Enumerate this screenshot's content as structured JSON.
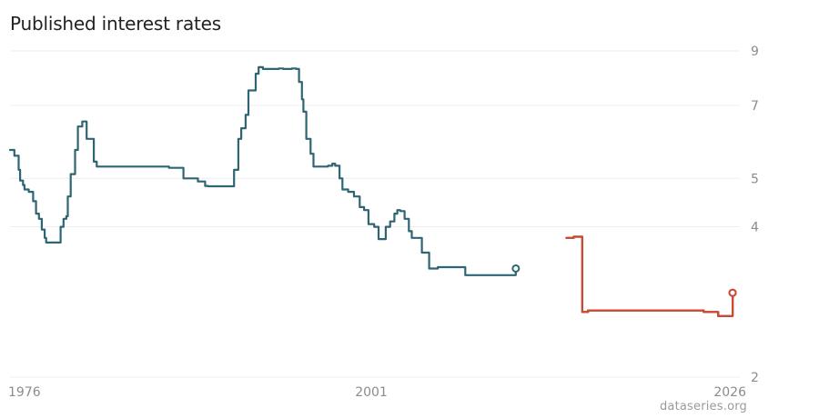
{
  "header": {
    "title": "Published interest rates"
  },
  "footer": {
    "source": "dataseries.org"
  },
  "chart_data": {
    "type": "line",
    "title": "Published interest rates",
    "xlabel": "",
    "ylabel": "",
    "xlim": [
      1976,
      2026.5
    ],
    "ylim": [
      2,
      9
    ],
    "y_scale": "log",
    "y_ticks": [
      2,
      4,
      5,
      7,
      9
    ],
    "y_tick_labels": [
      "2",
      "4",
      "5",
      "7",
      "9"
    ],
    "x_ticks": [
      1976,
      2001,
      2026
    ],
    "x_tick_labels": [
      "1976",
      "2001",
      "2026"
    ],
    "grid": "horizontal",
    "y_axis_side": "right",
    "series": [
      {
        "color": "#2d6672",
        "x": [
          1976.0,
          1976.3,
          1976.6,
          1976.7,
          1976.9,
          1977.0,
          1977.3,
          1977.6,
          1977.8,
          1978.0,
          1978.2,
          1978.4,
          1978.5,
          1978.8,
          1979.0,
          1979.5,
          1979.7,
          1979.9,
          1980.0,
          1980.2,
          1980.5,
          1980.7,
          1981.0,
          1981.3,
          1981.5,
          1981.8,
          1982.0,
          1982.2,
          1982.5,
          1982.8,
          1983.0,
          1983.2,
          1983.5,
          1983.7,
          1984.0,
          1984.3,
          1984.5,
          1985.0,
          1986.0,
          1987.0,
          1988.0,
          1989.0,
          1989.5,
          1989.7,
          1990.0,
          1991.0,
          1991.5,
          1991.8,
          1992.0,
          1992.3,
          1992.5,
          1993.0,
          1993.2,
          1993.5,
          1993.8,
          1994.0,
          1994.3,
          1994.6,
          1994.9,
          1995.2,
          1995.5,
          1995.8,
          1996.0,
          1996.2,
          1996.3,
          1996.5,
          1996.8,
          1997.0,
          1997.3,
          1997.6,
          1998.0,
          1998.3,
          1998.5,
          1998.8,
          1999.0,
          1999.4,
          1999.6,
          1999.8,
          2000.2,
          2000.5,
          2000.8,
          2001.2,
          2001.5,
          2001.8,
          2002.0,
          2002.3,
          2002.6,
          2002.8,
          2003.0,
          2003.3,
          2003.6,
          2003.8,
          2004.0,
          2004.5,
          2005.0,
          2005.6,
          2006.0,
          2006.5,
          2007.0,
          2007.5,
          2008.0,
          2008.5,
          2009.0,
          2009.3,
          2009.6,
          2010.0,
          2010.5,
          2011.0
        ],
        "y": [
          5.7,
          5.55,
          5.2,
          4.95,
          4.85,
          4.75,
          4.7,
          4.5,
          4.25,
          4.15,
          3.95,
          3.8,
          3.72,
          3.72,
          3.72,
          4.0,
          4.15,
          4.2,
          4.6,
          5.1,
          5.7,
          6.35,
          6.5,
          6.0,
          6.0,
          5.4,
          5.28,
          5.28,
          5.28,
          5.28,
          5.28,
          5.28,
          5.28,
          5.28,
          5.28,
          5.28,
          5.28,
          5.28,
          5.28,
          5.25,
          5.0,
          4.93,
          4.83,
          4.82,
          4.82,
          4.82,
          5.2,
          6.0,
          6.3,
          6.7,
          7.5,
          8.1,
          8.35,
          8.28,
          8.28,
          8.28,
          8.28,
          8.3,
          8.28,
          8.28,
          8.3,
          8.28,
          7.8,
          7.2,
          6.8,
          6.0,
          5.6,
          5.28,
          5.28,
          5.28,
          5.3,
          5.35,
          5.3,
          5.0,
          4.75,
          4.7,
          4.7,
          4.6,
          4.38,
          4.32,
          4.05,
          4.0,
          3.78,
          3.78,
          4.0,
          4.1,
          4.25,
          4.32,
          4.3,
          4.15,
          3.92,
          3.8,
          3.8,
          3.55,
          3.3,
          3.32,
          3.32,
          3.32,
          3.32,
          3.2,
          3.2,
          3.2,
          3.2,
          3.2,
          3.2,
          3.2,
          3.2,
          3.3
        ]
      },
      {
        "color": "#d4a13a",
        "x": [
          2014.5,
          2015.0,
          2015.3,
          2015.4,
          2015.6,
          2016.0,
          2019.0,
          2022.0,
          2023.0,
          2023.5,
          2024.0,
          2025.0,
          2026.0
        ],
        "y": [
          3.8,
          3.82,
          3.82,
          3.82,
          2.7,
          2.72,
          2.72,
          2.72,
          2.72,
          2.72,
          2.7,
          2.65,
          2.95
        ]
      },
      {
        "color": "#2f5e86",
        "x": [
          2014.5,
          2015.0,
          2015.3,
          2015.4,
          2015.6,
          2016.0,
          2019.0,
          2022.0,
          2023.0,
          2023.5,
          2024.0,
          2025.0,
          2026.0
        ],
        "y": [
          3.8,
          3.82,
          3.82,
          3.82,
          2.7,
          2.72,
          2.72,
          2.72,
          2.72,
          2.72,
          2.7,
          2.65,
          2.95
        ]
      },
      {
        "color": "#d2472f",
        "x": [
          2014.5,
          2015.0,
          2015.3,
          2015.4,
          2015.6,
          2016.0,
          2019.0,
          2022.0,
          2023.0,
          2023.5,
          2024.0,
          2025.0,
          2026.0
        ],
        "y": [
          3.8,
          3.82,
          3.82,
          3.82,
          2.7,
          2.72,
          2.72,
          2.72,
          2.72,
          2.72,
          2.7,
          2.65,
          2.95
        ]
      }
    ]
  }
}
